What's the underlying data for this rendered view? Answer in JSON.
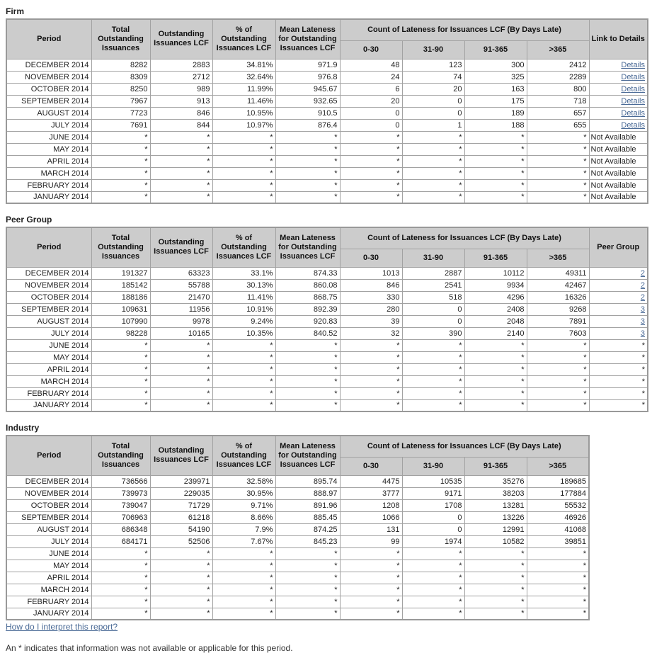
{
  "columns": {
    "period": "Period",
    "total_outstanding_issuances": "Total Outstanding Issuances",
    "outstanding_issuances_lcf": "Outstanding Issuances LCF",
    "pct_outstanding_issuances_lcf": "% of Outstanding Issuances LCF",
    "mean_lateness": "Mean Lateness for Outstanding Issuances LCF",
    "count_of_lateness_group": "Count of Lateness for Issuances LCF (By Days Late)",
    "bucket_0_30": "0-30",
    "bucket_31_90": "31-90",
    "bucket_91_365": "91-365",
    "bucket_gt_365": ">365"
  },
  "tables": [
    {
      "title": "Firm",
      "extra_column": "Link to Details",
      "extra_link_name": "details-link",
      "rows": [
        {
          "cells": [
            "DECEMBER 2014",
            "8282",
            "2883",
            "34.81%",
            "971.9",
            "48",
            "123",
            "300",
            "2412"
          ],
          "extra": {
            "text": "Details",
            "link": true
          }
        },
        {
          "cells": [
            "NOVEMBER 2014",
            "8309",
            "2712",
            "32.64%",
            "976.8",
            "24",
            "74",
            "325",
            "2289"
          ],
          "extra": {
            "text": "Details",
            "link": true
          }
        },
        {
          "cells": [
            "OCTOBER 2014",
            "8250",
            "989",
            "11.99%",
            "945.67",
            "6",
            "20",
            "163",
            "800"
          ],
          "extra": {
            "text": "Details",
            "link": true
          }
        },
        {
          "cells": [
            "SEPTEMBER 2014",
            "7967",
            "913",
            "11.46%",
            "932.65",
            "20",
            "0",
            "175",
            "718"
          ],
          "extra": {
            "text": "Details",
            "link": true
          }
        },
        {
          "cells": [
            "AUGUST 2014",
            "7723",
            "846",
            "10.95%",
            "910.5",
            "0",
            "0",
            "189",
            "657"
          ],
          "extra": {
            "text": "Details",
            "link": true
          }
        },
        {
          "cells": [
            "JULY 2014",
            "7691",
            "844",
            "10.97%",
            "876.4",
            "0",
            "1",
            "188",
            "655"
          ],
          "extra": {
            "text": "Details",
            "link": true
          }
        },
        {
          "cells": [
            "JUNE 2014",
            "*",
            "*",
            "*",
            "*",
            "*",
            "*",
            "*",
            "*"
          ],
          "extra": {
            "text": "Not Available",
            "link": false
          }
        },
        {
          "cells": [
            "MAY 2014",
            "*",
            "*",
            "*",
            "*",
            "*",
            "*",
            "*",
            "*"
          ],
          "extra": {
            "text": "Not Available",
            "link": false
          }
        },
        {
          "cells": [
            "APRIL 2014",
            "*",
            "*",
            "*",
            "*",
            "*",
            "*",
            "*",
            "*"
          ],
          "extra": {
            "text": "Not Available",
            "link": false
          }
        },
        {
          "cells": [
            "MARCH 2014",
            "*",
            "*",
            "*",
            "*",
            "*",
            "*",
            "*",
            "*"
          ],
          "extra": {
            "text": "Not Available",
            "link": false
          }
        },
        {
          "cells": [
            "FEBRUARY 2014",
            "*",
            "*",
            "*",
            "*",
            "*",
            "*",
            "*",
            "*"
          ],
          "extra": {
            "text": "Not Available",
            "link": false
          }
        },
        {
          "cells": [
            "JANUARY 2014",
            "*",
            "*",
            "*",
            "*",
            "*",
            "*",
            "*",
            "*"
          ],
          "extra": {
            "text": "Not Available",
            "link": false
          }
        }
      ]
    },
    {
      "title": "Peer Group",
      "extra_column": "Peer Group",
      "extra_link_name": "peer-group-link",
      "rows": [
        {
          "cells": [
            "DECEMBER 2014",
            "191327",
            "63323",
            "33.1%",
            "874.33",
            "1013",
            "2887",
            "10112",
            "49311"
          ],
          "extra": {
            "text": "2",
            "link": true
          }
        },
        {
          "cells": [
            "NOVEMBER 2014",
            "185142",
            "55788",
            "30.13%",
            "860.08",
            "846",
            "2541",
            "9934",
            "42467"
          ],
          "extra": {
            "text": "2",
            "link": true
          }
        },
        {
          "cells": [
            "OCTOBER 2014",
            "188186",
            "21470",
            "11.41%",
            "868.75",
            "330",
            "518",
            "4296",
            "16326"
          ],
          "extra": {
            "text": "2",
            "link": true
          }
        },
        {
          "cells": [
            "SEPTEMBER 2014",
            "109631",
            "11956",
            "10.91%",
            "892.39",
            "280",
            "0",
            "2408",
            "9268"
          ],
          "extra": {
            "text": "3",
            "link": true
          }
        },
        {
          "cells": [
            "AUGUST 2014",
            "107990",
            "9978",
            "9.24%",
            "920.83",
            "39",
            "0",
            "2048",
            "7891"
          ],
          "extra": {
            "text": "3",
            "link": true
          }
        },
        {
          "cells": [
            "JULY 2014",
            "98228",
            "10165",
            "10.35%",
            "840.52",
            "32",
            "390",
            "2140",
            "7603"
          ],
          "extra": {
            "text": "3",
            "link": true
          }
        },
        {
          "cells": [
            "JUNE 2014",
            "*",
            "*",
            "*",
            "*",
            "*",
            "*",
            "*",
            "*"
          ],
          "extra": {
            "text": "*",
            "link": false
          }
        },
        {
          "cells": [
            "MAY 2014",
            "*",
            "*",
            "*",
            "*",
            "*",
            "*",
            "*",
            "*"
          ],
          "extra": {
            "text": "*",
            "link": false
          }
        },
        {
          "cells": [
            "APRIL 2014",
            "*",
            "*",
            "*",
            "*",
            "*",
            "*",
            "*",
            "*"
          ],
          "extra": {
            "text": "*",
            "link": false
          }
        },
        {
          "cells": [
            "MARCH 2014",
            "*",
            "*",
            "*",
            "*",
            "*",
            "*",
            "*",
            "*"
          ],
          "extra": {
            "text": "*",
            "link": false
          }
        },
        {
          "cells": [
            "FEBRUARY 2014",
            "*",
            "*",
            "*",
            "*",
            "*",
            "*",
            "*",
            "*"
          ],
          "extra": {
            "text": "*",
            "link": false
          }
        },
        {
          "cells": [
            "JANUARY 2014",
            "*",
            "*",
            "*",
            "*",
            "*",
            "*",
            "*",
            "*"
          ],
          "extra": {
            "text": "*",
            "link": false
          }
        }
      ]
    },
    {
      "title": "Industry",
      "extra_column": null,
      "rows": [
        {
          "cells": [
            "DECEMBER 2014",
            "736566",
            "239971",
            "32.58%",
            "895.74",
            "4475",
            "10535",
            "35276",
            "189685"
          ]
        },
        {
          "cells": [
            "NOVEMBER 2014",
            "739973",
            "229035",
            "30.95%",
            "888.97",
            "3777",
            "9171",
            "38203",
            "177884"
          ]
        },
        {
          "cells": [
            "OCTOBER 2014",
            "739047",
            "71729",
            "9.71%",
            "891.96",
            "1208",
            "1708",
            "13281",
            "55532"
          ]
        },
        {
          "cells": [
            "SEPTEMBER 2014",
            "706963",
            "61218",
            "8.66%",
            "885.45",
            "1066",
            "0",
            "13226",
            "46926"
          ]
        },
        {
          "cells": [
            "AUGUST 2014",
            "686348",
            "54190",
            "7.9%",
            "874.25",
            "131",
            "0",
            "12991",
            "41068"
          ]
        },
        {
          "cells": [
            "JULY 2014",
            "684171",
            "52506",
            "7.67%",
            "845.23",
            "99",
            "1974",
            "10582",
            "39851"
          ]
        },
        {
          "cells": [
            "JUNE 2014",
            "*",
            "*",
            "*",
            "*",
            "*",
            "*",
            "*",
            "*"
          ]
        },
        {
          "cells": [
            "MAY 2014",
            "*",
            "*",
            "*",
            "*",
            "*",
            "*",
            "*",
            "*"
          ]
        },
        {
          "cells": [
            "APRIL 2014",
            "*",
            "*",
            "*",
            "*",
            "*",
            "*",
            "*",
            "*"
          ]
        },
        {
          "cells": [
            "MARCH 2014",
            "*",
            "*",
            "*",
            "*",
            "*",
            "*",
            "*",
            "*"
          ]
        },
        {
          "cells": [
            "FEBRUARY 2014",
            "*",
            "*",
            "*",
            "*",
            "*",
            "*",
            "*",
            "*"
          ]
        },
        {
          "cells": [
            "JANUARY 2014",
            "*",
            "*",
            "*",
            "*",
            "*",
            "*",
            "*",
            "*"
          ]
        }
      ]
    }
  ],
  "footer": {
    "interpret_link": "How do I interpret this report?",
    "footnote": "An * indicates that information was not available or applicable for this period."
  },
  "colors": {
    "header_bg": "#cccccc",
    "grid_border": "#a2a2a2",
    "outer_border": "#999999",
    "link": "#4a6a96"
  }
}
